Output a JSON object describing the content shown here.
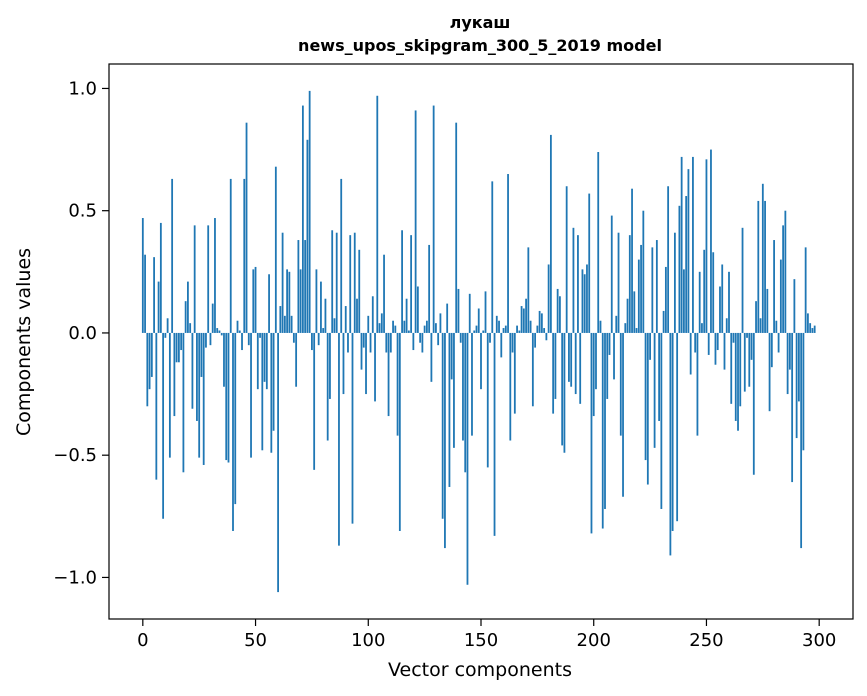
{
  "chart_data": {
    "type": "bar",
    "title_line1": "лукаш",
    "title_line2": "news_upos_skipgram_300_5_2019 model",
    "xlabel": "Vector components",
    "ylabel": "Components values",
    "xlim": [
      -15,
      315
    ],
    "ylim": [
      -1.17,
      1.1
    ],
    "xticks": [
      0,
      50,
      100,
      150,
      200,
      250,
      300
    ],
    "xtick_labels": [
      "0",
      "50",
      "100",
      "150",
      "200",
      "250",
      "300"
    ],
    "yticks": [
      -1.0,
      -0.5,
      0.0,
      0.5,
      1.0
    ],
    "ytick_labels": [
      "−1.0",
      "−0.5",
      "0.0",
      "0.5",
      "1.0"
    ],
    "bar_color": "#1f77b4",
    "values": [
      0.47,
      0.32,
      -0.3,
      -0.23,
      -0.18,
      0.31,
      -0.6,
      0.21,
      0.45,
      -0.76,
      -0.02,
      0.06,
      -0.51,
      0.63,
      -0.34,
      -0.12,
      -0.12,
      -0.07,
      -0.57,
      0.13,
      0.21,
      0.04,
      -0.31,
      0.44,
      -0.36,
      -0.51,
      -0.18,
      -0.54,
      -0.06,
      0.44,
      -0.05,
      0.12,
      0.47,
      0.02,
      0.01,
      -0.01,
      -0.22,
      -0.52,
      -0.53,
      0.63,
      -0.81,
      -0.7,
      0.05,
      0.01,
      -0.07,
      0.63,
      0.86,
      -0.05,
      -0.51,
      0.26,
      0.27,
      -0.23,
      -0.02,
      -0.48,
      -0.2,
      -0.23,
      0.24,
      -0.49,
      -0.4,
      0.68,
      -1.06,
      0.11,
      0.41,
      0.07,
      0.26,
      0.25,
      0.07,
      -0.04,
      -0.22,
      0.38,
      0.26,
      0.93,
      0.38,
      0.79,
      0.99,
      -0.07,
      -0.56,
      0.26,
      -0.05,
      0.21,
      0.02,
      0.14,
      -0.44,
      -0.27,
      0.42,
      0.06,
      0.41,
      -0.87,
      0.63,
      -0.25,
      0.11,
      -0.08,
      0.4,
      -0.78,
      0.41,
      0.14,
      0.34,
      -0.15,
      -0.06,
      -0.25,
      0.07,
      -0.08,
      0.15,
      -0.28,
      0.97,
      0.04,
      0.08,
      0.32,
      -0.08,
      -0.34,
      -0.08,
      0.05,
      0.03,
      -0.42,
      -0.81,
      0.42,
      0.05,
      0.14,
      0.01,
      0.4,
      -0.07,
      0.91,
      0.19,
      -0.04,
      -0.08,
      0.03,
      0.05,
      0.36,
      -0.2,
      0.93,
      0.04,
      -0.05,
      0.08,
      -0.76,
      -0.88,
      0.12,
      -0.63,
      -0.19,
      -0.47,
      0.86,
      0.18,
      -0.04,
      -0.44,
      -0.57,
      -1.03,
      0.16,
      -0.42,
      0.01,
      0.03,
      0.1,
      -0.23,
      0.01,
      0.17,
      -0.55,
      -0.04,
      0.62,
      -0.83,
      0.07,
      0.05,
      -0.1,
      0.02,
      0.03,
      0.65,
      -0.44,
      -0.08,
      -0.33,
      0.03,
      0.01,
      0.11,
      0.1,
      0.14,
      0.35,
      0.05,
      -0.3,
      -0.06,
      0.03,
      0.09,
      0.08,
      0.02,
      -0.03,
      0.28,
      0.81,
      -0.33,
      -0.27,
      0.18,
      0.15,
      -0.46,
      -0.49,
      0.6,
      -0.2,
      -0.22,
      0.43,
      -0.25,
      0.4,
      -0.29,
      0.26,
      0.24,
      0.28,
      0.57,
      -0.82,
      -0.34,
      -0.23,
      0.74,
      0.05,
      -0.8,
      -0.72,
      -0.27,
      -0.09,
      0.48,
      -0.19,
      0.07,
      0.41,
      -0.42,
      -0.67,
      0.04,
      0.14,
      0.4,
      0.59,
      0.17,
      0.02,
      0.3,
      0.36,
      0.5,
      -0.52,
      -0.62,
      -0.11,
      0.35,
      -0.47,
      0.38,
      -0.36,
      -0.72,
      0.09,
      0.27,
      0.6,
      -0.91,
      -0.81,
      0.41,
      -0.77,
      0.52,
      0.72,
      0.26,
      0.56,
      0.67,
      -0.17,
      0.72,
      -0.08,
      -0.42,
      0.25,
      0.04,
      0.34,
      0.71,
      -0.09,
      0.75,
      0.33,
      -0.13,
      -0.07,
      0.19,
      0.28,
      -0.15,
      0.06,
      0.25,
      -0.29,
      -0.04,
      -0.36,
      -0.4,
      -0.3,
      0.43,
      -0.24,
      -0.02,
      -0.22,
      -0.11,
      -0.58,
      0.13,
      0.54,
      0.06,
      0.61,
      0.54,
      0.18,
      -0.32,
      -0.14,
      0.38,
      0.05,
      -0.08,
      0.3,
      0.44,
      0.5,
      -0.25,
      -0.15,
      -0.61,
      0.22,
      -0.43,
      -0.28,
      -0.88,
      -0.48,
      0.35,
      0.08,
      0.04,
      0.02,
      0.03
    ]
  }
}
